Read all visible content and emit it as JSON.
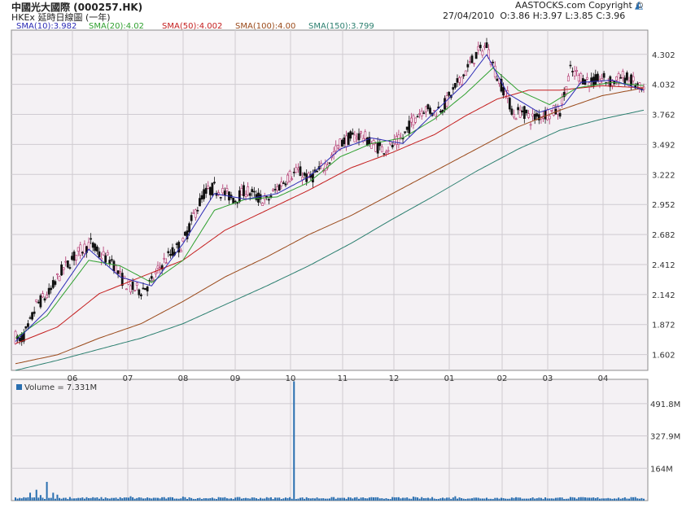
{
  "header": {
    "title": "中國光大國際 (000257.HK)",
    "subtitle": "HKEx 延時日線圖 (一年)",
    "date": "27/04/2010",
    "ohlc": "O:3.86  H:3.97  L:3.85  C:3.96",
    "brand": "AASTOCKS.com Copyright ©",
    "brand_icon": "aastocks-logo-icon"
  },
  "colors": {
    "background": "#f4f1f4",
    "grid": "#cfcbd1",
    "candle": "#b0306a",
    "sma10": "#2b2bb5",
    "sma20": "#2fa02f",
    "sma50": "#c41e1e",
    "sma100": "#9a4a1a",
    "sma150": "#2b7f6f",
    "volume": "#2a6fb0"
  },
  "legend": [
    {
      "label": "SMA(10):3.982",
      "key": "sma10"
    },
    {
      "label": "SMA(20):4.02",
      "key": "sma20"
    },
    {
      "label": "SMA(50):4.002",
      "key": "sma50"
    },
    {
      "label": "SMA(100):4.00",
      "key": "sma100"
    },
    {
      "label": "SMA(150):3.799",
      "key": "sma150"
    }
  ],
  "volume_legend": "Volume = 7.331M",
  "chart_data": [
    {
      "type": "candlestick",
      "y_ticks": [
        "1.602",
        "1.872",
        "2.142",
        "2.412",
        "2.682",
        "2.952",
        "3.222",
        "3.492",
        "3.762",
        "4.032",
        "4.302"
      ],
      "x_ticks": [
        "06",
        "07",
        "08",
        "09",
        "10",
        "11",
        "12",
        "01",
        "02",
        "03",
        "04"
      ],
      "ylim": [
        1.46,
        4.52
      ],
      "last_close": 3.96,
      "price_anchors": [
        [
          0,
          1.76
        ],
        [
          2,
          1.72
        ],
        [
          6,
          1.83
        ],
        [
          10,
          2.05
        ],
        [
          16,
          2.15
        ],
        [
          22,
          2.35
        ],
        [
          28,
          2.48
        ],
        [
          32,
          2.55
        ],
        [
          36,
          2.6
        ],
        [
          40,
          2.5
        ],
        [
          46,
          2.45
        ],
        [
          50,
          2.3
        ],
        [
          55,
          2.2
        ],
        [
          60,
          2.18
        ],
        [
          65,
          2.25
        ],
        [
          70,
          2.42
        ],
        [
          75,
          2.52
        ],
        [
          80,
          2.6
        ],
        [
          85,
          2.85
        ],
        [
          90,
          3.05
        ],
        [
          95,
          3.1
        ],
        [
          100,
          3.05
        ],
        [
          105,
          3.0
        ],
        [
          110,
          3.08
        ],
        [
          115,
          3.02
        ],
        [
          120,
          2.98
        ],
        [
          125,
          3.1
        ],
        [
          130,
          3.2
        ],
        [
          135,
          3.25
        ],
        [
          140,
          3.18
        ],
        [
          145,
          3.25
        ],
        [
          150,
          3.35
        ],
        [
          155,
          3.5
        ],
        [
          160,
          3.55
        ],
        [
          165,
          3.58
        ],
        [
          170,
          3.5
        ],
        [
          175,
          3.45
        ],
        [
          180,
          3.48
        ],
        [
          185,
          3.55
        ],
        [
          190,
          3.72
        ],
        [
          195,
          3.82
        ],
        [
          200,
          3.78
        ],
        [
          205,
          3.85
        ],
        [
          210,
          4.0
        ],
        [
          215,
          4.15
        ],
        [
          220,
          4.3
        ],
        [
          225,
          4.38
        ],
        [
          230,
          4.1
        ],
        [
          235,
          3.92
        ],
        [
          238,
          3.75
        ],
        [
          242,
          3.8
        ],
        [
          246,
          3.72
        ],
        [
          250,
          3.75
        ],
        [
          255,
          3.78
        ],
        [
          260,
          3.8
        ],
        [
          265,
          4.15
        ],
        [
          270,
          4.1
        ],
        [
          275,
          4.05
        ],
        [
          280,
          4.08
        ],
        [
          285,
          4.05
        ],
        [
          290,
          4.1
        ],
        [
          295,
          4.05
        ],
        [
          300,
          3.95
        ]
      ],
      "sma": {
        "sma10": [
          [
            0,
            1.72
          ],
          [
            15,
            2.0
          ],
          [
            35,
            2.55
          ],
          [
            50,
            2.3
          ],
          [
            65,
            2.22
          ],
          [
            80,
            2.6
          ],
          [
            95,
            3.05
          ],
          [
            110,
            3.0
          ],
          [
            125,
            3.05
          ],
          [
            140,
            3.2
          ],
          [
            155,
            3.45
          ],
          [
            170,
            3.55
          ],
          [
            185,
            3.5
          ],
          [
            200,
            3.78
          ],
          [
            215,
            4.05
          ],
          [
            225,
            4.3
          ],
          [
            235,
            3.95
          ],
          [
            250,
            3.78
          ],
          [
            262,
            3.85
          ],
          [
            270,
            4.05
          ],
          [
            285,
            4.07
          ],
          [
            300,
            3.98
          ]
        ],
        "sma20": [
          [
            0,
            1.75
          ],
          [
            15,
            1.95
          ],
          [
            35,
            2.45
          ],
          [
            50,
            2.4
          ],
          [
            65,
            2.25
          ],
          [
            80,
            2.45
          ],
          [
            95,
            2.9
          ],
          [
            110,
            3.0
          ],
          [
            125,
            3.02
          ],
          [
            140,
            3.15
          ],
          [
            155,
            3.38
          ],
          [
            170,
            3.5
          ],
          [
            185,
            3.55
          ],
          [
            200,
            3.72
          ],
          [
            215,
            3.95
          ],
          [
            228,
            4.18
          ],
          [
            240,
            3.98
          ],
          [
            255,
            3.85
          ],
          [
            268,
            4.0
          ],
          [
            285,
            4.05
          ],
          [
            300,
            4.02
          ]
        ],
        "sma50": [
          [
            0,
            1.7
          ],
          [
            20,
            1.85
          ],
          [
            40,
            2.15
          ],
          [
            60,
            2.3
          ],
          [
            80,
            2.45
          ],
          [
            100,
            2.72
          ],
          [
            120,
            2.9
          ],
          [
            140,
            3.08
          ],
          [
            160,
            3.28
          ],
          [
            180,
            3.42
          ],
          [
            200,
            3.58
          ],
          [
            215,
            3.75
          ],
          [
            230,
            3.9
          ],
          [
            245,
            3.98
          ],
          [
            260,
            3.98
          ],
          [
            280,
            4.02
          ],
          [
            300,
            4.0
          ]
        ],
        "sma100": [
          [
            0,
            1.52
          ],
          [
            20,
            1.6
          ],
          [
            40,
            1.75
          ],
          [
            60,
            1.88
          ],
          [
            80,
            2.08
          ],
          [
            100,
            2.3
          ],
          [
            120,
            2.48
          ],
          [
            140,
            2.68
          ],
          [
            160,
            2.85
          ],
          [
            180,
            3.05
          ],
          [
            200,
            3.25
          ],
          [
            220,
            3.45
          ],
          [
            240,
            3.65
          ],
          [
            260,
            3.8
          ],
          [
            280,
            3.93
          ],
          [
            300,
            4.0
          ]
        ],
        "sma150": [
          [
            0,
            1.46
          ],
          [
            20,
            1.55
          ],
          [
            40,
            1.65
          ],
          [
            60,
            1.75
          ],
          [
            80,
            1.88
          ],
          [
            100,
            2.05
          ],
          [
            120,
            2.22
          ],
          [
            140,
            2.4
          ],
          [
            160,
            2.6
          ],
          [
            180,
            2.82
          ],
          [
            200,
            3.03
          ],
          [
            220,
            3.25
          ],
          [
            240,
            3.45
          ],
          [
            260,
            3.62
          ],
          [
            280,
            3.72
          ],
          [
            300,
            3.8
          ]
        ]
      }
    },
    {
      "type": "bar",
      "title": "Volume",
      "y_ticks": [
        "164M",
        "327.9M",
        "491.8M"
      ],
      "ylim": [
        0,
        615
      ],
      "spike": {
        "index": 133,
        "value": 605
      },
      "notable": [
        [
          7,
          40
        ],
        [
          10,
          55
        ],
        [
          12,
          28
        ],
        [
          15,
          95
        ],
        [
          18,
          40
        ],
        [
          20,
          30
        ],
        [
          26,
          18
        ],
        [
          55,
          22
        ],
        [
          80,
          20
        ],
        [
          190,
          20
        ],
        [
          210,
          22
        ],
        [
          265,
          18
        ]
      ],
      "baseline": 8
    }
  ]
}
